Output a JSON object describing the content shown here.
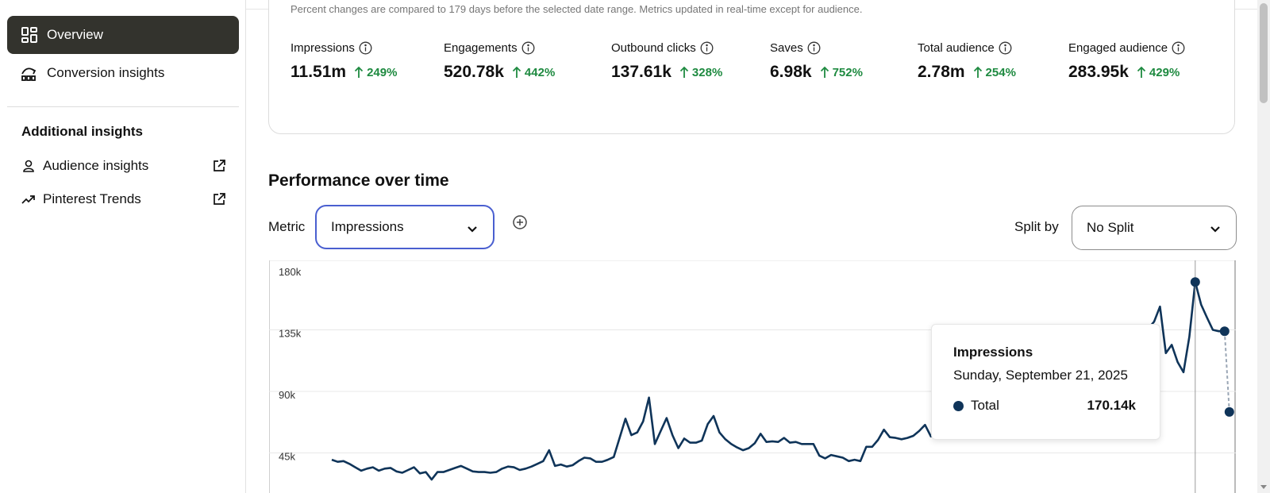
{
  "sidebar": {
    "items": [
      {
        "label": "Overview",
        "icon": "dashboard-grid-icon",
        "active": true
      },
      {
        "label": "Conversion insights",
        "icon": "conversion-chart-icon",
        "active": false
      }
    ],
    "section_title": "Additional insights",
    "links": [
      {
        "label": "Audience insights",
        "icon": "person-icon"
      },
      {
        "label": "Pinterest Trends",
        "icon": "trend-arrow-icon"
      }
    ]
  },
  "disclaimer": "Percent changes are compared to 179 days before the selected date range. Metrics updated in real-time except for audience.",
  "metrics": [
    {
      "label": "Impressions",
      "value": "11.51m",
      "change": "249%"
    },
    {
      "label": "Engagements",
      "value": "520.78k",
      "change": "442%"
    },
    {
      "label": "Outbound clicks",
      "value": "137.61k",
      "change": "328%"
    },
    {
      "label": "Saves",
      "value": "6.98k",
      "change": "752%"
    },
    {
      "label": "Total audience",
      "value": "2.78m",
      "change": "254%"
    },
    {
      "label": "Engaged audience",
      "value": "283.95k",
      "change": "429%"
    }
  ],
  "performance": {
    "title": "Performance over time",
    "metric_label": "Metric",
    "metric_value": "Impressions",
    "split_label": "Split by",
    "split_value": "No Split"
  },
  "chart_data": {
    "type": "line",
    "title": "",
    "xlabel": "",
    "ylabel": "",
    "ylim": [
      0,
      180000
    ],
    "yticks": [
      "180k",
      "135k",
      "90k",
      "45k"
    ],
    "ytick_values": [
      180000,
      135000,
      90000,
      45000
    ],
    "grid": true,
    "series": [
      {
        "color": "#0f3459",
        "values": [
          40000,
          38500,
          39000,
          37000,
          34500,
          32000,
          33500,
          34500,
          32000,
          33500,
          34000,
          31500,
          30500,
          32500,
          34500,
          30000,
          31000,
          25500,
          31000,
          31000,
          32500,
          34000,
          35500,
          33500,
          31500,
          31000,
          31000,
          30500,
          31000,
          33500,
          35000,
          34500,
          32500,
          33500,
          35000,
          37000,
          39000,
          47000,
          35500,
          36500,
          35000,
          36000,
          39000,
          41500,
          41000,
          38500,
          38500,
          40000,
          42000,
          56000,
          70000,
          58000,
          60000,
          68000,
          85500,
          51500,
          61000,
          70500,
          58000,
          48500,
          55500,
          52500,
          52500,
          54000,
          66000,
          72000,
          60000,
          55000,
          51500,
          49000,
          47000,
          48500,
          52000,
          59000,
          53000,
          53500,
          53000,
          56000,
          52500,
          53000,
          51500,
          51500,
          51500,
          43000,
          41000,
          43500,
          42500,
          41500,
          39000,
          40000,
          39000,
          49500,
          49500,
          54500,
          62000,
          56500,
          56000,
          55000,
          56000,
          57500,
          61000,
          65500,
          57000,
          58000,
          62500,
          62000,
          63500,
          65000,
          71000,
          67000,
          70000,
          66500,
          69500,
          86500,
          72500,
          71000,
          73000,
          82500,
          77000,
          81000,
          90000,
          85000,
          87000,
          86000,
          93000,
          92500,
          91000,
          98000,
          103000,
          106000,
          95000,
          100000,
          104000,
          108500,
          113000,
          118000,
          122500,
          126500,
          131500,
          136000,
          141000,
          152000,
          118000,
          124000,
          111500,
          104000,
          130000,
          170000,
          153500,
          144000,
          135000,
          134000,
          134000
        ]
      }
    ],
    "highlight": {
      "values": [
        170000,
        134000,
        75000
      ]
    }
  },
  "tooltip": {
    "title": "Impressions",
    "date": "Sunday, September 21, 2025",
    "series": "Total",
    "value": "170.14k"
  }
}
